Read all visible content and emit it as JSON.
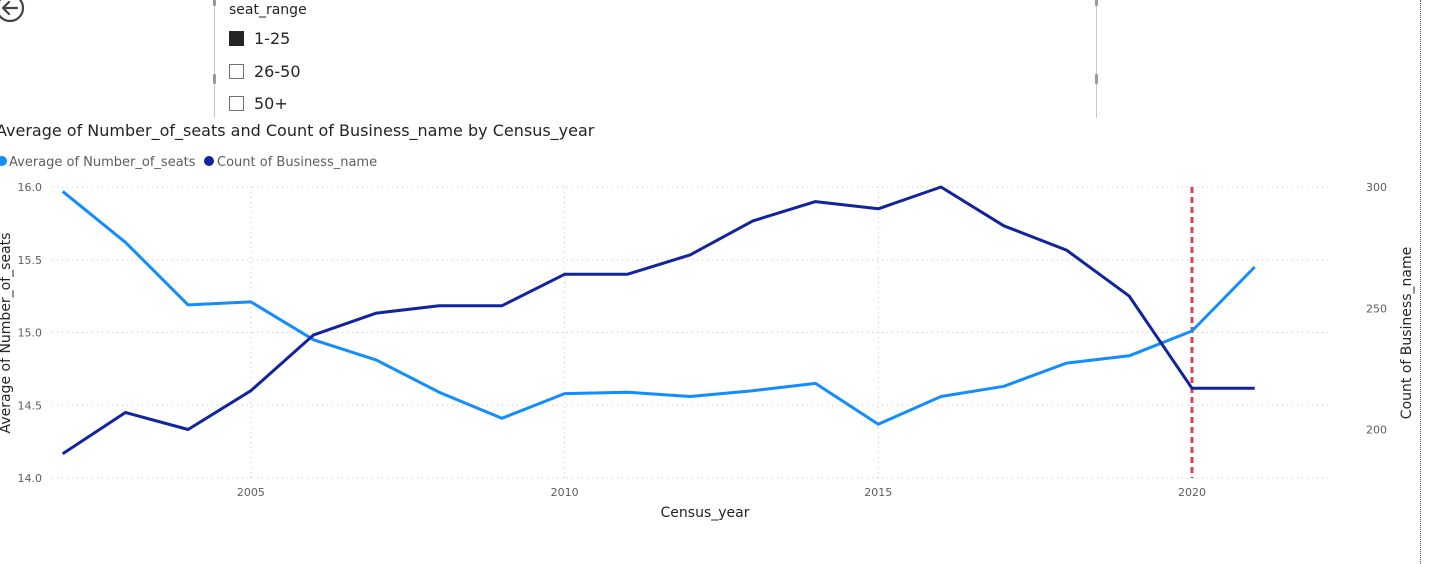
{
  "slicer": {
    "title": "seat_range",
    "items": [
      {
        "label": "1-25",
        "checked": true
      },
      {
        "label": "26-50",
        "checked": false
      },
      {
        "label": "50+",
        "checked": false
      }
    ]
  },
  "chart_data": {
    "type": "line",
    "title": "Average of Number_of_seats and Count of Business_name by Census_year",
    "xlabel": "Census_year",
    "ylabel": "Average of Number_of_seats",
    "y2label": "Count of Business_name",
    "x": [
      2002,
      2003,
      2004,
      2005,
      2006,
      2007,
      2008,
      2009,
      2010,
      2011,
      2012,
      2013,
      2014,
      2015,
      2016,
      2017,
      2018,
      2019,
      2020,
      2021
    ],
    "xlim": [
      2001.83,
      2022.2
    ],
    "xticks": [
      "2005",
      "2010",
      "2015",
      "2020"
    ],
    "ylim": [
      14.0,
      16.0
    ],
    "yticks": [
      "14.0",
      "14.5",
      "15.0",
      "15.5",
      "16.0"
    ],
    "y2lim": [
      180,
      300
    ],
    "y2ticks": [
      "200",
      "250",
      "300"
    ],
    "series": [
      {
        "name": "Average of Number_of_seats",
        "axis": "left",
        "color": "#118dff",
        "values": [
          15.97,
          15.62,
          15.19,
          15.21,
          14.95,
          14.81,
          14.59,
          14.41,
          14.58,
          14.59,
          14.56,
          14.6,
          14.65,
          14.37,
          14.56,
          14.63,
          14.79,
          14.84,
          15.01,
          15.45
        ]
      },
      {
        "name": "Count of Business_name",
        "axis": "right",
        "color": "#12239e",
        "values": [
          190,
          207,
          200,
          216,
          239,
          248,
          251,
          251,
          264,
          264,
          272,
          286,
          294,
          291,
          300,
          284,
          274,
          255,
          217,
          217
        ]
      }
    ],
    "reference_line": {
      "x": 2020,
      "color": "#d64550",
      "style": "dashed"
    },
    "legend_position": "top-left",
    "grid": true
  }
}
